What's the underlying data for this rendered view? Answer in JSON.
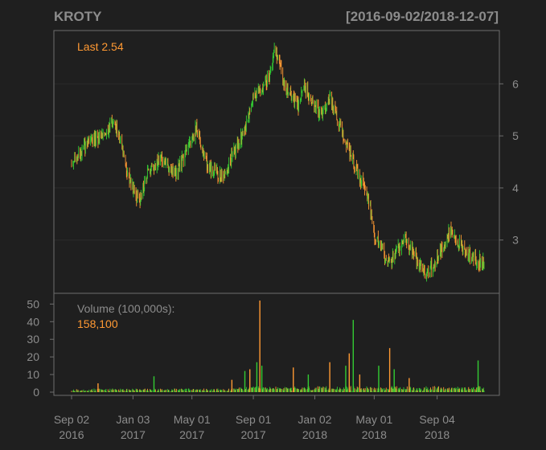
{
  "chart_data": {
    "type": "candlestick",
    "title": "KROTY",
    "date_range": "[2016-09-02/2018-12-07]",
    "colors": {
      "background": "#1f1f1f",
      "frame": "#6e6e6e",
      "title": "#8c8c8c",
      "up": "#33cc33",
      "down": "#ff9933",
      "last_label": "#ff9933",
      "volume_label": "#8c8c8c"
    },
    "price_panel": {
      "last_label": "Last 2.54",
      "yticks": [
        3,
        4,
        5,
        6
      ],
      "ytick_labels": [
        "3",
        "4",
        "5",
        "6"
      ],
      "ylim": [
        2.1,
        6.9
      ],
      "grid": true,
      "anchors": [
        [
          "2016-09-02",
          4.45
        ],
        [
          "2016-10-01",
          4.8
        ],
        [
          "2016-11-01",
          5.0
        ],
        [
          "2016-11-25",
          5.3
        ],
        [
          "2016-12-10",
          4.85
        ],
        [
          "2016-12-25",
          4.2
        ],
        [
          "2017-01-15",
          3.7
        ],
        [
          "2017-02-01",
          4.3
        ],
        [
          "2017-03-01",
          4.55
        ],
        [
          "2017-04-01",
          4.3
        ],
        [
          "2017-05-01",
          4.9
        ],
        [
          "2017-05-10",
          5.15
        ],
        [
          "2017-06-01",
          4.4
        ],
        [
          "2017-07-01",
          4.2
        ],
        [
          "2017-07-20",
          4.6
        ],
        [
          "2017-08-10",
          5.0
        ],
        [
          "2017-09-01",
          5.7
        ],
        [
          "2017-10-01",
          6.1
        ],
        [
          "2017-10-15",
          6.7
        ],
        [
          "2017-11-01",
          6.0
        ],
        [
          "2017-12-01",
          5.6
        ],
        [
          "2017-12-10",
          5.95
        ],
        [
          "2018-01-15",
          5.4
        ],
        [
          "2018-02-01",
          5.75
        ],
        [
          "2018-03-01",
          5.0
        ],
        [
          "2018-04-01",
          4.2
        ],
        [
          "2018-04-20",
          3.8
        ],
        [
          "2018-05-01",
          3.1
        ],
        [
          "2018-06-01",
          2.55
        ],
        [
          "2018-07-01",
          3.05
        ],
        [
          "2018-08-01",
          2.5
        ],
        [
          "2018-08-15",
          2.35
        ],
        [
          "2018-09-04",
          2.65
        ],
        [
          "2018-10-01",
          3.2
        ],
        [
          "2018-10-25",
          2.8
        ],
        [
          "2018-12-07",
          2.54
        ]
      ]
    },
    "volume_panel": {
      "label": "Volume (100,000s):",
      "last_value": "158,100",
      "yticks": [
        0,
        10,
        20,
        30,
        40,
        50
      ],
      "ytick_labels": [
        "0",
        "10",
        "20",
        "30",
        "40",
        "50"
      ],
      "ylim": [
        0,
        52
      ],
      "spikes": [
        [
          "2016-10-25",
          5
        ],
        [
          "2017-02-14",
          9
        ],
        [
          "2017-07-20",
          7
        ],
        [
          "2017-08-15",
          12
        ],
        [
          "2017-08-25",
          13
        ],
        [
          "2017-09-08",
          17
        ],
        [
          "2017-09-14",
          52
        ],
        [
          "2017-09-18",
          15
        ],
        [
          "2017-11-20",
          14
        ],
        [
          "2017-12-20",
          10
        ],
        [
          "2018-02-01",
          17
        ],
        [
          "2018-03-05",
          15
        ],
        [
          "2018-03-12",
          22
        ],
        [
          "2018-03-20",
          41
        ],
        [
          "2018-04-02",
          10
        ],
        [
          "2018-05-10",
          15
        ],
        [
          "2018-06-01",
          25
        ],
        [
          "2018-06-10",
          13
        ],
        [
          "2018-07-10",
          8
        ],
        [
          "2018-11-25",
          18
        ]
      ]
    },
    "x_axis": {
      "start": "2016-09-02",
      "end": "2018-12-07",
      "ticks": [
        {
          "date": "2016-09-02",
          "line1": "Sep 02",
          "line2": "2016"
        },
        {
          "date": "2017-01-03",
          "line1": "Jan 03",
          "line2": "2017"
        },
        {
          "date": "2017-05-01",
          "line1": "May 01",
          "line2": "2017"
        },
        {
          "date": "2017-09-01",
          "line1": "Sep 01",
          "line2": "2017"
        },
        {
          "date": "2018-01-02",
          "line1": "Jan 02",
          "line2": "2018"
        },
        {
          "date": "2018-05-01",
          "line1": "May 01",
          "line2": "2018"
        },
        {
          "date": "2018-09-04",
          "line1": "Sep 04",
          "line2": "2018"
        }
      ]
    }
  }
}
